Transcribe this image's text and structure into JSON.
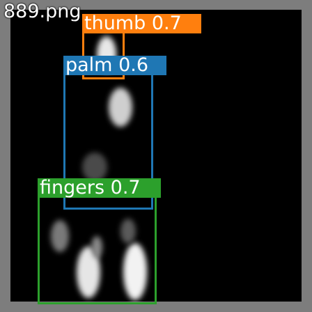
{
  "image": {
    "filename": "889.png",
    "frame_color": "#7d7d7d",
    "background_color": "#000000"
  },
  "detections": [
    {
      "label": "thumb",
      "score": "0.7",
      "color": "#ff7f0e"
    },
    {
      "label": "palm",
      "score": "0.6",
      "color": "#1f77b4"
    },
    {
      "label": "fingers",
      "score": "0.7",
      "color": "#2ca02c"
    }
  ]
}
